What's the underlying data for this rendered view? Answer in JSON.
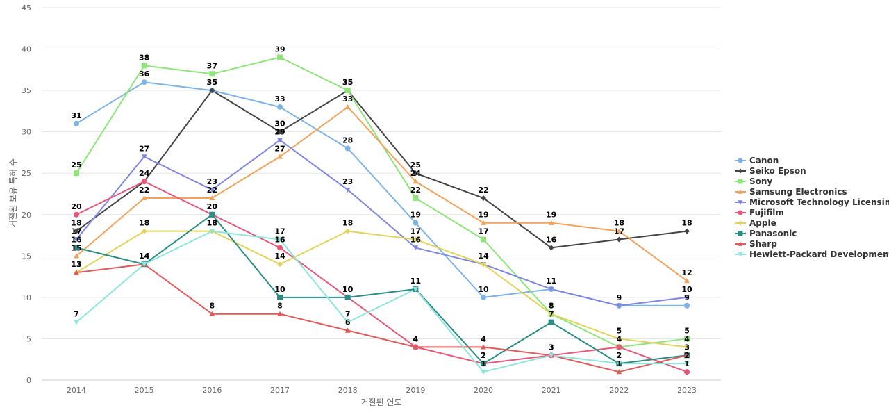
{
  "chart_data": {
    "type": "line",
    "xlabel": "거절된 연도",
    "ylabel": "거절된 보유 특허 수",
    "ylim": [
      0,
      45
    ],
    "yticks": [
      0,
      5,
      10,
      15,
      20,
      25,
      30,
      35,
      40,
      45
    ],
    "grid": true,
    "legend_position": "right",
    "categories": [
      "2014",
      "2015",
      "2016",
      "2017",
      "2018",
      "2019",
      "2020",
      "2021",
      "2022",
      "2023"
    ],
    "series": [
      {
        "name": "Canon",
        "color": "#7eb3e3",
        "marker": "circle",
        "values": [
          31,
          36,
          35,
          33,
          28,
          19,
          10,
          11,
          9,
          9
        ]
      },
      {
        "name": "Seiko Epson",
        "color": "#444444",
        "marker": "diamond",
        "values": [
          18,
          24,
          35,
          30,
          35,
          25,
          22,
          16,
          17,
          18
        ]
      },
      {
        "name": "Sony",
        "color": "#8ee57a",
        "marker": "square",
        "values": [
          25,
          38,
          37,
          39,
          35,
          22,
          17,
          8,
          4,
          5
        ]
      },
      {
        "name": "Samsung Electronics",
        "color": "#f3a25c",
        "marker": "triangle",
        "values": [
          15,
          22,
          22,
          27,
          33,
          24,
          19,
          19,
          18,
          12
        ]
      },
      {
        "name": "Microsoft Technology Licensing",
        "color": "#7f86e0",
        "marker": "triangle-down",
        "values": [
          17,
          27,
          23,
          29,
          23,
          16,
          14,
          11,
          9,
          10
        ]
      },
      {
        "name": "Fujifilm",
        "color": "#e8587a",
        "marker": "circle",
        "values": [
          20,
          24,
          20,
          16,
          10,
          4,
          2,
          3,
          4,
          1
        ]
      },
      {
        "name": "Apple",
        "color": "#e2d35a",
        "marker": "diamond",
        "values": [
          13,
          18,
          18,
          14,
          18,
          17,
          14,
          8,
          5,
          4
        ]
      },
      {
        "name": "Panasonic",
        "color": "#2a8c85",
        "marker": "square",
        "values": [
          16,
          14,
          20,
          10,
          10,
          11,
          2,
          7,
          2,
          3
        ]
      },
      {
        "name": "Sharp",
        "color": "#e15a5a",
        "marker": "triangle",
        "values": [
          13,
          14,
          8,
          8,
          6,
          4,
          4,
          3,
          1,
          3
        ]
      },
      {
        "name": "Hewlett-Packard Development",
        "color": "#8de5db",
        "marker": "triangle-down",
        "values": [
          7,
          14,
          18,
          17,
          7,
          11,
          1,
          3,
          2,
          2
        ]
      }
    ]
  }
}
